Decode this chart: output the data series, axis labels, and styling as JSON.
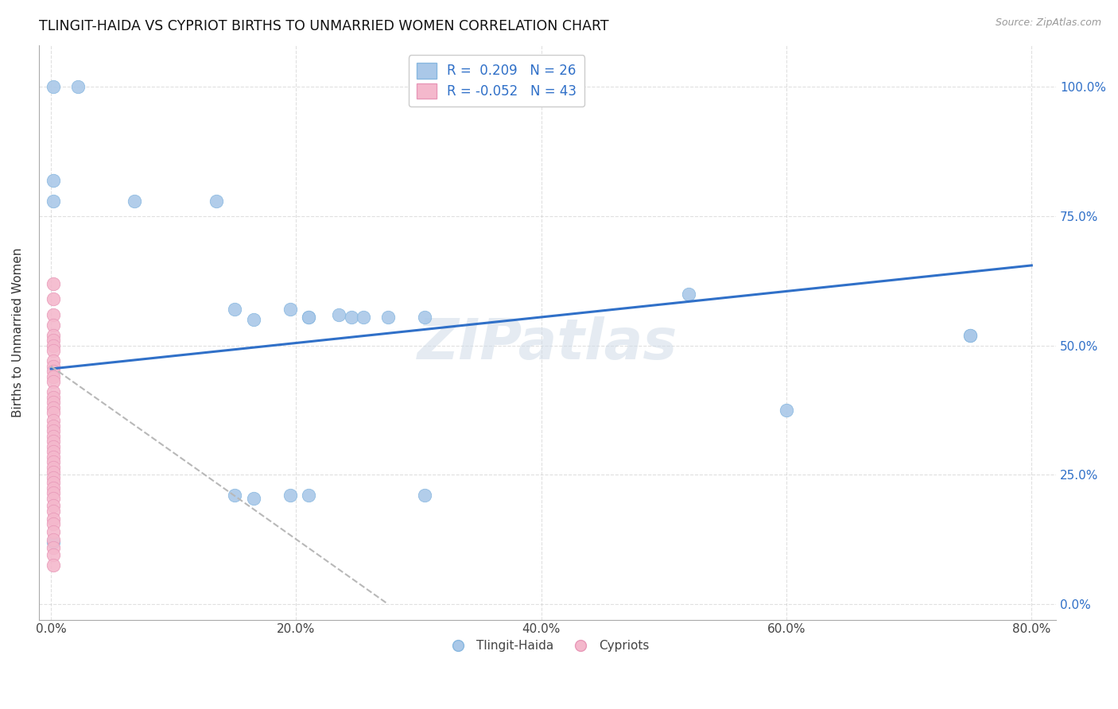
{
  "title": "TLINGIT-HAIDA VS CYPRIOT BIRTHS TO UNMARRIED WOMEN CORRELATION CHART",
  "source": "Source: ZipAtlas.com",
  "ylabel": "Births to Unmarried Women",
  "tlingit_color": "#aac8e8",
  "cypriot_color": "#f4b8cc",
  "trendline_blue_color": "#3070c8",
  "trendline_gray_color": "#b8b8b8",
  "background_color": "#ffffff",
  "grid_color": "#cccccc",
  "tlingit_x": [
    0.002,
    0.022,
    0.002,
    0.002,
    0.068,
    0.135,
    0.15,
    0.165,
    0.195,
    0.21,
    0.21,
    0.235,
    0.245,
    0.255,
    0.275,
    0.305,
    0.52,
    0.6,
    0.75,
    0.15,
    0.165,
    0.195,
    0.21,
    0.305,
    0.002,
    0.75
  ],
  "tlingit_y": [
    1.0,
    1.0,
    0.82,
    0.78,
    0.78,
    0.78,
    0.57,
    0.55,
    0.57,
    0.555,
    0.555,
    0.56,
    0.555,
    0.555,
    0.555,
    0.555,
    0.6,
    0.375,
    0.52,
    0.21,
    0.205,
    0.21,
    0.21,
    0.21,
    0.12,
    0.52
  ],
  "cypriot_x": [
    0.002,
    0.002,
    0.002,
    0.002,
    0.002,
    0.002,
    0.002,
    0.002,
    0.002,
    0.002,
    0.002,
    0.002,
    0.002,
    0.002,
    0.002,
    0.002,
    0.002,
    0.002,
    0.002,
    0.002,
    0.002,
    0.002,
    0.002,
    0.002,
    0.002,
    0.002,
    0.002,
    0.002,
    0.002,
    0.002,
    0.002,
    0.002,
    0.002,
    0.002,
    0.002,
    0.002,
    0.002,
    0.002,
    0.002,
    0.002,
    0.002,
    0.002,
    0.002
  ],
  "cypriot_y": [
    0.62,
    0.59,
    0.56,
    0.54,
    0.52,
    0.51,
    0.5,
    0.49,
    0.47,
    0.46,
    0.45,
    0.44,
    0.43,
    0.41,
    0.4,
    0.39,
    0.38,
    0.37,
    0.355,
    0.345,
    0.335,
    0.325,
    0.315,
    0.305,
    0.295,
    0.285,
    0.275,
    0.265,
    0.255,
    0.245,
    0.235,
    0.225,
    0.215,
    0.205,
    0.19,
    0.18,
    0.165,
    0.155,
    0.14,
    0.125,
    0.11,
    0.095,
    0.075
  ],
  "blue_trend_x": [
    0.0,
    0.8
  ],
  "blue_trend_y": [
    0.455,
    0.655
  ],
  "gray_trend_x": [
    0.0,
    0.275
  ],
  "gray_trend_y": [
    0.46,
    0.0
  ],
  "xlim": [
    -0.01,
    0.82
  ],
  "ylim": [
    -0.03,
    1.08
  ],
  "x_tick_vals": [
    0.0,
    0.2,
    0.4,
    0.6,
    0.8
  ],
  "x_tick_labels": [
    "0.0%",
    "20.0%",
    "40.0%",
    "60.0%",
    "80.0%"
  ],
  "y_tick_vals": [
    0.0,
    0.25,
    0.5,
    0.75,
    1.0
  ],
  "y_tick_labels": [
    "0.0%",
    "25.0%",
    "50.0%",
    "75.0%",
    "100.0%"
  ]
}
